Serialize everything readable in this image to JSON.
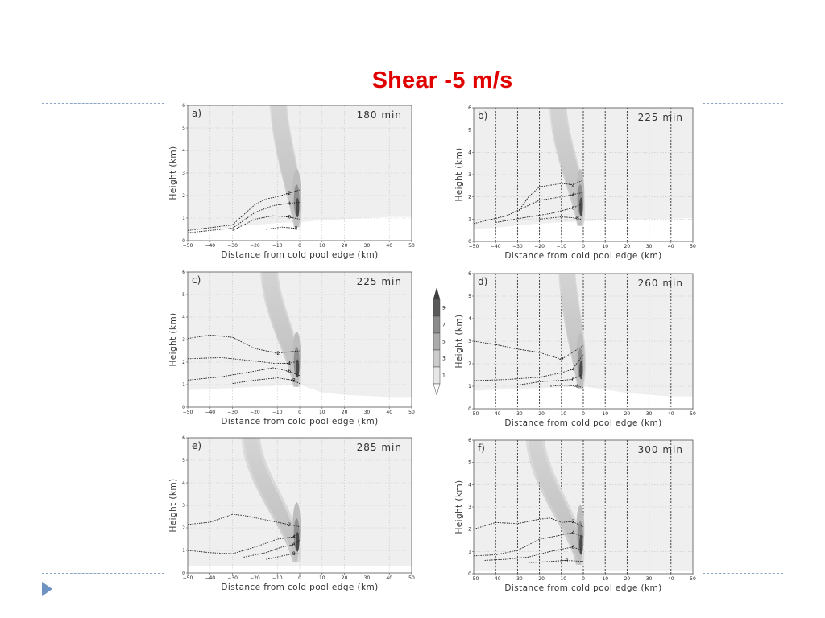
{
  "slide": {
    "title": "Shear -5 m/s",
    "title_color": "#e00000",
    "accent_color": "#6e93c2"
  },
  "chart_data": {
    "type": "contour",
    "xlabel": "Distance from cold pool edge (km)",
    "ylabel": "Height (km)",
    "xlim": [
      -50,
      50
    ],
    "ylim": [
      0,
      6
    ],
    "xticks": [
      -50,
      -40,
      -30,
      -20,
      -10,
      0,
      10,
      20,
      30,
      40,
      50
    ],
    "yticks": [
      0,
      1,
      2,
      3,
      4,
      5,
      6
    ],
    "grid": true,
    "colorbar": {
      "levels": [
        1,
        3,
        5,
        7,
        9
      ]
    },
    "contour_levels": [
      -2,
      -4,
      -6,
      -8
    ],
    "panels": [
      {
        "tag": "a)",
        "time": "180 min",
        "vertical_lines": false,
        "cold_pool_top": [
          [
            -50,
            0.42
          ],
          [
            -40,
            0.5
          ],
          [
            -30,
            0.6
          ],
          [
            -20,
            0.7
          ],
          [
            -10,
            0.78
          ],
          [
            0,
            0.82
          ],
          [
            10,
            0.9
          ],
          [
            20,
            0.95
          ],
          [
            30,
            1.0
          ],
          [
            40,
            1.05
          ],
          [
            50,
            1.05
          ]
        ],
        "plume": {
          "base_x": -1,
          "base_z": 0.6,
          "top_x": -10,
          "top_z": 6.0
        },
        "contours": [
          {
            "level": -2,
            "points": [
              [
                -50,
                0.45
              ],
              [
                -30,
                0.7
              ],
              [
                -20,
                1.6
              ],
              [
                -15,
                1.85
              ],
              [
                -10,
                1.95
              ],
              [
                -5,
                2.1
              ],
              [
                0,
                2.25
              ]
            ]
          },
          {
            "level": -4,
            "points": [
              [
                -50,
                0.35
              ],
              [
                -30,
                0.55
              ],
              [
                -20,
                1.25
              ],
              [
                -12,
                1.55
              ],
              [
                -5,
                1.65
              ],
              [
                0,
                1.7
              ]
            ]
          },
          {
            "level": -6,
            "points": [
              [
                -30,
                0.45
              ],
              [
                -20,
                0.95
              ],
              [
                -12,
                1.1
              ],
              [
                -5,
                1.05
              ],
              [
                0,
                0.95
              ]
            ]
          },
          {
            "level": -8,
            "points": [
              [
                -15,
                0.5
              ],
              [
                -8,
                0.6
              ],
              [
                -2,
                0.55
              ],
              [
                0,
                0.5
              ]
            ]
          }
        ]
      },
      {
        "tag": "b)",
        "time": "225 min",
        "vertical_lines": true,
        "cold_pool_top": [
          [
            -50,
            0.55
          ],
          [
            -40,
            0.62
          ],
          [
            -30,
            0.72
          ],
          [
            -20,
            0.8
          ],
          [
            -10,
            0.86
          ],
          [
            0,
            0.9
          ],
          [
            10,
            0.95
          ],
          [
            20,
            1.0
          ],
          [
            30,
            1.0
          ],
          [
            40,
            1.02
          ],
          [
            50,
            1.05
          ]
        ],
        "plume": {
          "base_x": -1,
          "base_z": 0.7,
          "top_x": -12,
          "top_z": 6.0
        },
        "contours": [
          {
            "level": -2,
            "points": [
              [
                -30,
                1.3
              ],
              [
                -25,
                2.0
              ],
              [
                -20,
                2.45
              ],
              [
                -10,
                2.6
              ],
              [
                -5,
                2.55
              ],
              [
                0,
                2.75
              ]
            ]
          },
          {
            "level": -4,
            "points": [
              [
                -50,
                0.8
              ],
              [
                -35,
                1.15
              ],
              [
                -20,
                1.85
              ],
              [
                -10,
                2.0
              ],
              [
                -5,
                2.1
              ],
              [
                0,
                2.2
              ]
            ]
          },
          {
            "level": -6,
            "points": [
              [
                -40,
                0.85
              ],
              [
                -25,
                1.1
              ],
              [
                -15,
                1.25
              ],
              [
                -5,
                1.5
              ],
              [
                0,
                1.7
              ]
            ]
          },
          {
            "level": -8,
            "points": [
              [
                -20,
                1.0
              ],
              [
                -10,
                1.1
              ],
              [
                -3,
                1.05
              ],
              [
                0,
                0.95
              ]
            ]
          }
        ]
      },
      {
        "tag": "c)",
        "time": "225 min",
        "vertical_lines": false,
        "cold_pool_top": [
          [
            -50,
            0.75
          ],
          [
            -40,
            0.8
          ],
          [
            -30,
            0.85
          ],
          [
            -20,
            0.9
          ],
          [
            -10,
            0.95
          ],
          [
            0,
            1.0
          ],
          [
            10,
            0.65
          ],
          [
            20,
            0.55
          ],
          [
            30,
            0.5
          ],
          [
            40,
            0.45
          ],
          [
            50,
            0.45
          ]
        ],
        "plume": {
          "base_x": -1,
          "base_z": 0.9,
          "top_x": -14,
          "top_z": 6.0
        },
        "contours": [
          {
            "level": -2,
            "points": [
              [
                -50,
                3.05
              ],
              [
                -40,
                3.2
              ],
              [
                -30,
                3.1
              ],
              [
                -20,
                2.6
              ],
              [
                -10,
                2.4
              ],
              [
                0,
                2.5
              ]
            ]
          },
          {
            "level": -4,
            "points": [
              [
                -50,
                2.15
              ],
              [
                -35,
                2.2
              ],
              [
                -20,
                2.05
              ],
              [
                -12,
                1.95
              ],
              [
                -5,
                1.95
              ],
              [
                0,
                2.05
              ]
            ]
          },
          {
            "level": -6,
            "points": [
              [
                -50,
                1.2
              ],
              [
                -35,
                1.35
              ],
              [
                -20,
                1.6
              ],
              [
                -12,
                1.75
              ],
              [
                -5,
                1.6
              ],
              [
                0,
                1.4
              ]
            ]
          },
          {
            "level": -8,
            "points": [
              [
                -30,
                1.05
              ],
              [
                -20,
                1.2
              ],
              [
                -10,
                1.3
              ],
              [
                -3,
                1.2
              ],
              [
                0,
                1.05
              ]
            ]
          }
        ]
      },
      {
        "tag": "d)",
        "time": "260 min",
        "vertical_lines": true,
        "cold_pool_top": [
          [
            -50,
            0.8
          ],
          [
            -40,
            0.85
          ],
          [
            -30,
            0.88
          ],
          [
            -20,
            0.92
          ],
          [
            -10,
            0.95
          ],
          [
            0,
            1.0
          ],
          [
            10,
            0.85
          ],
          [
            20,
            0.7
          ],
          [
            30,
            0.62
          ],
          [
            40,
            0.55
          ],
          [
            50,
            0.55
          ]
        ],
        "plume": {
          "base_x": -1,
          "base_z": 0.9,
          "top_x": -8,
          "top_z": 6.0
        },
        "contours": [
          {
            "level": -2,
            "points": [
              [
                -50,
                3.0
              ],
              [
                -40,
                2.85
              ],
              [
                -30,
                2.65
              ],
              [
                -20,
                2.5
              ],
              [
                -10,
                2.2
              ],
              [
                0,
                2.8
              ]
            ]
          },
          {
            "level": -4,
            "points": [
              [
                -50,
                1.25
              ],
              [
                -35,
                1.3
              ],
              [
                -20,
                1.4
              ],
              [
                -10,
                1.6
              ],
              [
                -5,
                1.75
              ],
              [
                0,
                2.4
              ]
            ]
          },
          {
            "level": -6,
            "points": [
              [
                -30,
                1.05
              ],
              [
                -20,
                1.2
              ],
              [
                -12,
                1.25
              ],
              [
                -5,
                1.3
              ],
              [
                0,
                1.55
              ]
            ]
          },
          {
            "level": -8,
            "points": [
              [
                -15,
                1.0
              ],
              [
                -8,
                1.05
              ],
              [
                -3,
                1.0
              ],
              [
                0,
                0.95
              ]
            ]
          }
        ]
      },
      {
        "tag": "e)",
        "time": "285 min",
        "vertical_lines": false,
        "cold_pool_top": [
          [
            -50,
            0.3
          ],
          [
            -40,
            0.3
          ],
          [
            -30,
            0.3
          ],
          [
            -20,
            0.3
          ],
          [
            -10,
            0.3
          ],
          [
            0,
            0.3
          ],
          [
            10,
            0.3
          ],
          [
            20,
            0.3
          ],
          [
            30,
            0.3
          ],
          [
            40,
            0.3
          ],
          [
            50,
            0.3
          ]
        ],
        "plume": {
          "base_x": -1,
          "base_z": 0.5,
          "top_x": -22,
          "top_z": 6.0
        },
        "contours": [
          {
            "level": -2,
            "points": [
              [
                -50,
                2.15
              ],
              [
                -40,
                2.25
              ],
              [
                -30,
                2.6
              ],
              [
                -25,
                2.55
              ],
              [
                -15,
                2.35
              ],
              [
                -5,
                2.15
              ],
              [
                0,
                2.05
              ]
            ]
          },
          {
            "level": -4,
            "points": [
              [
                -50,
                1.0
              ],
              [
                -40,
                0.9
              ],
              [
                -30,
                0.85
              ],
              [
                -20,
                1.15
              ],
              [
                -10,
                1.5
              ],
              [
                -3,
                1.6
              ],
              [
                0,
                1.75
              ]
            ]
          },
          {
            "level": -6,
            "points": [
              [
                -25,
                0.7
              ],
              [
                -15,
                0.9
              ],
              [
                -8,
                1.15
              ],
              [
                -3,
                1.25
              ],
              [
                0,
                1.45
              ]
            ]
          },
          {
            "level": -8,
            "points": [
              [
                -15,
                0.6
              ],
              [
                -8,
                0.75
              ],
              [
                -3,
                0.85
              ],
              [
                0,
                0.85
              ]
            ]
          }
        ]
      },
      {
        "tag": "f)",
        "time": "300 min",
        "vertical_lines": true,
        "cold_pool_top": [
          [
            -50,
            0.15
          ],
          [
            -40,
            0.15
          ],
          [
            -30,
            0.15
          ],
          [
            -20,
            0.15
          ],
          [
            -10,
            0.15
          ],
          [
            0,
            0.15
          ],
          [
            10,
            0.15
          ],
          [
            20,
            0.15
          ],
          [
            30,
            0.15
          ],
          [
            40,
            0.15
          ],
          [
            50,
            0.15
          ]
        ],
        "plume": {
          "base_x": -1,
          "base_z": 0.4,
          "top_x": -22,
          "top_z": 6.0
        },
        "contours": [
          {
            "level": -2,
            "points": [
              [
                -50,
                2.0
              ],
              [
                -40,
                2.3
              ],
              [
                -30,
                2.25
              ],
              [
                -20,
                2.45
              ],
              [
                -15,
                2.5
              ],
              [
                -10,
                2.3
              ],
              [
                -5,
                2.35
              ],
              [
                0,
                2.1
              ]
            ]
          },
          {
            "level": -4,
            "points": [
              [
                -50,
                0.8
              ],
              [
                -40,
                0.85
              ],
              [
                -30,
                1.05
              ],
              [
                -20,
                1.55
              ],
              [
                -12,
                1.7
              ],
              [
                -5,
                1.85
              ],
              [
                0,
                1.65
              ]
            ]
          },
          {
            "level": -6,
            "points": [
              [
                -45,
                0.6
              ],
              [
                -35,
                0.65
              ],
              [
                -25,
                0.75
              ],
              [
                -15,
                1.0
              ],
              [
                -5,
                1.2
              ],
              [
                0,
                1.05
              ]
            ]
          },
          {
            "level": -8,
            "points": [
              [
                -25,
                0.5
              ],
              [
                -15,
                0.55
              ],
              [
                -8,
                0.6
              ],
              [
                0,
                0.55
              ]
            ]
          }
        ]
      }
    ]
  }
}
